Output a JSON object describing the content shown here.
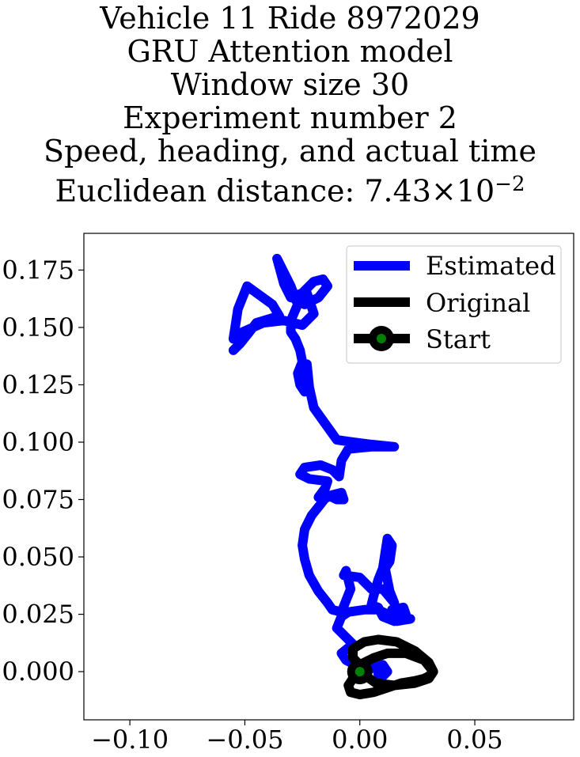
{
  "chart_data": {
    "type": "line",
    "title_lines": [
      "Vehicle 11 Ride 8972029",
      "GRU Attention model",
      "Window size 30",
      "Experiment number 2",
      "Speed, heading, and actual time"
    ],
    "title_last_prefix": "Euclidean distance: 7.43",
    "title_last_times": "×",
    "title_last_base": "10",
    "title_last_exp": "−2",
    "xlim": [
      -0.12,
      0.093
    ],
    "ylim": [
      -0.021,
      0.191
    ],
    "xticks": [
      -0.1,
      -0.05,
      0.0,
      0.05
    ],
    "xtick_labels": [
      "−0.10",
      "−0.05",
      "0.00",
      "0.05"
    ],
    "yticks": [
      0.0,
      0.025,
      0.05,
      0.075,
      0.1,
      0.125,
      0.15,
      0.175
    ],
    "ytick_labels": [
      "0.000",
      "0.025",
      "0.050",
      "0.075",
      "0.100",
      "0.125",
      "0.150",
      "0.175"
    ],
    "legend": {
      "placement": "upper right",
      "entries": [
        "Estimated",
        "Original",
        "Start"
      ]
    },
    "colors": {
      "estimated": "#0000ff",
      "original": "#000000",
      "start_marker": "#008000"
    },
    "series": [
      {
        "name": "Estimated",
        "x": [
          -0.055,
          -0.052,
          -0.048,
          -0.045,
          -0.035,
          -0.038,
          -0.049,
          -0.053,
          -0.055,
          -0.051,
          -0.042,
          -0.033,
          -0.025,
          -0.02,
          -0.023,
          -0.028,
          -0.024,
          -0.018,
          -0.014,
          -0.016,
          -0.02,
          -0.025,
          -0.03,
          -0.033,
          -0.036,
          -0.034,
          -0.03,
          -0.027,
          -0.03,
          -0.03,
          -0.028,
          -0.026,
          -0.025,
          -0.027,
          -0.026,
          -0.024,
          -0.023,
          -0.025,
          -0.023,
          -0.022,
          -0.02,
          -0.01,
          -0.003,
          0.005,
          0.015,
          0.005,
          -0.005,
          -0.008,
          -0.009,
          -0.012,
          -0.017,
          -0.024,
          -0.026,
          -0.022,
          -0.014,
          -0.015,
          -0.018,
          -0.017,
          -0.016,
          -0.012,
          -0.008,
          -0.007,
          -0.01,
          -0.014,
          -0.017,
          -0.021,
          -0.024,
          -0.025,
          -0.024,
          -0.022,
          -0.018,
          -0.014,
          -0.012,
          -0.008,
          -0.006,
          -0.004,
          -0.006,
          -0.007,
          0.0,
          0.005,
          0.01,
          0.015,
          0.013,
          0.012,
          0.011,
          0.013,
          0.014,
          0.012,
          0.01,
          0.008,
          0.006,
          0.005,
          0.008,
          0.01,
          0.015,
          0.02,
          0.019,
          0.014,
          0.013,
          0.022,
          0.016,
          0.012,
          0.008,
          0.002,
          -0.005,
          -0.008,
          -0.01,
          -0.006,
          -0.003,
          -0.008,
          -0.006,
          -0.002,
          0.0,
          0.004,
          0.01,
          0.012,
          0.01,
          0.008
        ],
        "y": [
          0.14,
          0.143,
          0.148,
          0.152,
          0.155,
          0.16,
          0.168,
          0.158,
          0.145,
          0.148,
          0.152,
          0.153,
          0.151,
          0.156,
          0.165,
          0.162,
          0.16,
          0.163,
          0.168,
          0.171,
          0.17,
          0.165,
          0.163,
          0.169,
          0.18,
          0.176,
          0.168,
          0.16,
          0.153,
          0.148,
          0.145,
          0.14,
          0.135,
          0.13,
          0.125,
          0.122,
          0.127,
          0.13,
          0.134,
          0.124,
          0.115,
          0.101,
          0.1,
          0.099,
          0.098,
          0.098,
          0.097,
          0.092,
          0.085,
          0.088,
          0.09,
          0.089,
          0.086,
          0.084,
          0.083,
          0.08,
          0.076,
          0.077,
          0.075,
          0.077,
          0.078,
          0.075,
          0.075,
          0.077,
          0.073,
          0.068,
          0.062,
          0.055,
          0.049,
          0.042,
          0.035,
          0.03,
          0.027,
          0.026,
          0.031,
          0.036,
          0.044,
          0.042,
          0.041,
          0.036,
          0.036,
          0.03,
          0.035,
          0.04,
          0.045,
          0.048,
          0.055,
          0.058,
          0.045,
          0.04,
          0.033,
          0.029,
          0.028,
          0.024,
          0.022,
          0.025,
          0.028,
          0.027,
          0.024,
          0.023,
          0.022,
          0.025,
          0.027,
          0.027,
          0.026,
          0.024,
          0.019,
          0.015,
          0.012,
          0.008,
          0.005,
          0.003,
          0.0,
          0.001,
          0.003,
          0.0,
          -0.002,
          -0.001
        ]
      },
      {
        "name": "Original",
        "x": [
          0.0,
          -0.003,
          -0.005,
          -0.004,
          0.0,
          0.006,
          0.012,
          0.018,
          0.024,
          0.028,
          0.03,
          0.032,
          0.03,
          0.024,
          0.016,
          0.008,
          0.002,
          -0.003,
          -0.003,
          0.0,
          0.006,
          0.012,
          0.02,
          0.028,
          0.032,
          0.03,
          0.024,
          0.015,
          0.007,
          0.0
        ],
        "y": [
          0.0,
          -0.003,
          -0.006,
          -0.009,
          -0.01,
          -0.009,
          -0.007,
          -0.005,
          -0.004,
          -0.003,
          -0.002,
          0.0,
          0.004,
          0.009,
          0.013,
          0.014,
          0.013,
          0.01,
          0.006,
          0.003,
          0.006,
          0.008,
          0.008,
          0.005,
          0.0,
          -0.003,
          -0.005,
          -0.006,
          -0.005,
          0.0
        ]
      }
    ],
    "start_point": {
      "x": 0.0,
      "y": 0.0
    }
  }
}
